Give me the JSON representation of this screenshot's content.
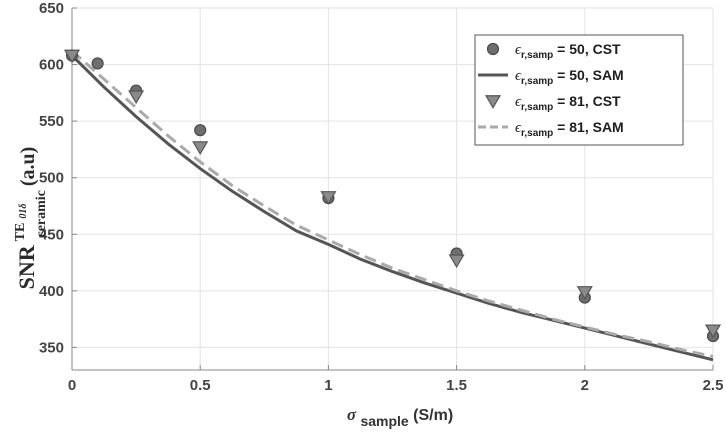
{
  "chart_data": {
    "type": "line",
    "title": "",
    "ylabel": {
      "main": "SNR",
      "superscript": "TE",
      "superscript_sub": "01δ",
      "subscript": "ceramic",
      "unit": " (a.u)"
    },
    "xlabel": {
      "symbol": "σ",
      "subscript": "sample",
      "unit": " (S/m)"
    },
    "xlim": [
      0,
      2.5
    ],
    "ylim": [
      330,
      650
    ],
    "xticks": [
      "0",
      "0.5",
      "1",
      "1.5",
      "2",
      "2.5"
    ],
    "xtick_values": [
      0,
      0.5,
      1,
      1.5,
      2,
      2.5
    ],
    "yticks": [
      "350",
      "400",
      "450",
      "500",
      "550",
      "600",
      "650"
    ],
    "ytick_values": [
      350,
      400,
      450,
      500,
      550,
      600,
      650
    ],
    "grid": true,
    "legend_position": "top-right",
    "series": [
      {
        "name": "ϵr,samp = 50, CST",
        "legend": {
          "eps": "ϵ",
          "sub": "r,samp",
          "text": " = 50, CST"
        },
        "kind": "markers",
        "marker": "circle",
        "color": "#6e6e6e",
        "x": [
          0,
          0.1,
          0.25,
          0.5,
          1,
          1.5,
          2,
          2.5
        ],
        "y": [
          608,
          601,
          577,
          542,
          482,
          433,
          394,
          360
        ]
      },
      {
        "name": "ϵr,samp = 50, SAM",
        "legend": {
          "eps": "ϵ",
          "sub": "r,samp",
          "text": " = 50, SAM"
        },
        "kind": "line",
        "dash": "solid",
        "color": "#555555",
        "x": [
          0,
          0.125,
          0.25,
          0.375,
          0.5,
          0.625,
          0.75,
          0.875,
          1,
          1.125,
          1.25,
          1.375,
          1.5,
          1.625,
          1.75,
          1.875,
          2,
          2.125,
          2.25,
          2.375,
          2.5
        ],
        "y": [
          608,
          580,
          554,
          530,
          508,
          488,
          470,
          453,
          441,
          428,
          417,
          407,
          398,
          389,
          381,
          374,
          367,
          360,
          353,
          346,
          339
        ]
      },
      {
        "name": "ϵr,samp = 81, CST",
        "legend": {
          "eps": "ϵ",
          "sub": "r,samp",
          "text": " = 81, CST"
        },
        "kind": "markers",
        "marker": "triangle-down",
        "color": "#8a8a8a",
        "x": [
          0,
          0.25,
          0.5,
          1,
          1.5,
          2,
          2.5
        ],
        "y": [
          608,
          572,
          527,
          483,
          427,
          399,
          365
        ]
      },
      {
        "name": "ϵr,samp = 81, SAM",
        "legend": {
          "eps": "ϵ",
          "sub": "r,samp",
          "text": " = 81, SAM"
        },
        "kind": "line",
        "dash": "dashed",
        "color": "#aaaaaa",
        "x": [
          0,
          0.125,
          0.25,
          0.375,
          0.5,
          0.625,
          0.75,
          0.875,
          1,
          1.125,
          1.25,
          1.375,
          1.5,
          1.625,
          1.75,
          1.875,
          2,
          2.125,
          2.25,
          2.375,
          2.5
        ],
        "y": [
          612,
          587,
          562,
          537,
          514,
          493,
          475,
          458,
          445,
          432,
          420,
          410,
          400,
          391,
          383,
          375,
          368,
          361,
          355,
          348,
          342
        ]
      }
    ]
  }
}
